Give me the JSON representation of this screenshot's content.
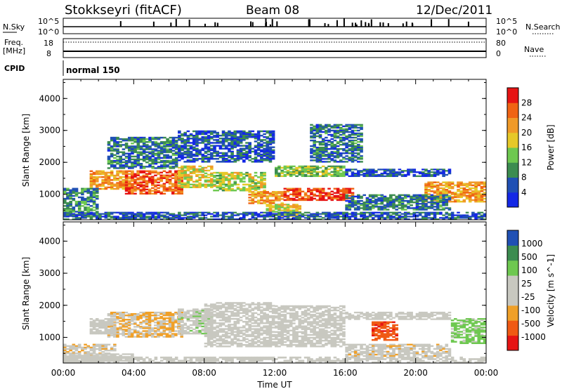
{
  "header": {
    "station": "Stokkseyri (fitACF)",
    "beam": "Beam 08",
    "date": "12/Dec/2011"
  },
  "strip_labels": {
    "nsky": "N.Sky",
    "freq_line1": "Freq.",
    "freq_line2": "[MHz]",
    "cpid": "CPID",
    "nsearch": "N.Search",
    "nave": "Nave",
    "cpid_value": "normal 150"
  },
  "strip_ticks": {
    "nsky_left": [
      "10^5",
      "10^0"
    ],
    "nsky_right": [
      "10^5",
      "10^0"
    ],
    "freq_left": [
      "18",
      "8"
    ],
    "freq_right": [
      "80",
      "0"
    ]
  },
  "colors": {
    "power_scale": [
      "#1428e6",
      "#2050b4",
      "#3c8c50",
      "#6ec850",
      "#e6c828",
      "#f09a28",
      "#f06414",
      "#e61414"
    ],
    "velocity_scale": [
      "#e61414",
      "#f05a14",
      "#f0a028",
      "#c8c8c0",
      "#c8c8c0",
      "#6ec850",
      "#3c8c50",
      "#2050b4"
    ]
  },
  "chart_data": [
    {
      "type": "heatmap",
      "title": "",
      "xlabel": "Time UT",
      "ylabel": "Slant Range [km]",
      "x_ticks": [
        "00:00",
        "04:00",
        "08:00",
        "12:00",
        "16:00",
        "20:00",
        "00:00"
      ],
      "y_ticks": [
        "1000",
        "2000",
        "3000",
        "4000"
      ],
      "ylim": [
        200,
        4600
      ],
      "colorbar_label": "Power [dB]",
      "colorbar_ticks": [
        "28",
        "24",
        "20",
        "16",
        "12",
        "8",
        "4"
      ],
      "colorbar_range": [
        0,
        32
      ],
      "patches": [
        {
          "t0": 1.5,
          "t1": 4.0,
          "r0": 1150,
          "r1": 1750,
          "value": 22
        },
        {
          "t0": 3.5,
          "t1": 6.8,
          "r0": 1000,
          "r1": 1750,
          "value": 26
        },
        {
          "t0": 6.5,
          "t1": 8.5,
          "r0": 1200,
          "r1": 1900,
          "value": 18
        },
        {
          "t0": 8.5,
          "t1": 11.5,
          "r0": 1100,
          "r1": 1700,
          "value": 16
        },
        {
          "t0": 10.5,
          "t1": 12.5,
          "r0": 700,
          "r1": 1100,
          "value": 22
        },
        {
          "t0": 12.5,
          "t1": 16.5,
          "r0": 800,
          "r1": 1200,
          "value": 28
        },
        {
          "t0": 11.5,
          "t1": 13.5,
          "r0": 300,
          "r1": 700,
          "value": 18
        },
        {
          "t0": 12.0,
          "t1": 16.0,
          "r0": 1550,
          "r1": 1900,
          "value": 14
        },
        {
          "t0": 16.0,
          "t1": 22.0,
          "r0": 1550,
          "r1": 1800,
          "value": 6
        },
        {
          "t0": 20.5,
          "t1": 24.0,
          "r0": 750,
          "r1": 1400,
          "value": 22
        },
        {
          "t0": 0.0,
          "t1": 2.0,
          "r0": 300,
          "r1": 1200,
          "value": 10
        },
        {
          "t0": 2.5,
          "t1": 6.5,
          "r0": 1800,
          "r1": 2800,
          "value": 8
        },
        {
          "t0": 6.5,
          "t1": 12.0,
          "r0": 2000,
          "r1": 3000,
          "value": 6
        },
        {
          "t0": 14.0,
          "t1": 17.0,
          "r0": 2000,
          "r1": 3200,
          "value": 8
        },
        {
          "t0": 16.0,
          "t1": 22.0,
          "r0": 500,
          "r1": 1000,
          "value": 8
        },
        {
          "t0": 0.0,
          "t1": 24.0,
          "r0": 200,
          "r1": 450,
          "value": 6
        }
      ]
    },
    {
      "type": "heatmap",
      "title": "",
      "xlabel": "Time UT",
      "ylabel": "Slant Range [km]",
      "x_ticks": [
        "00:00",
        "04:00",
        "08:00",
        "12:00",
        "16:00",
        "20:00",
        "00:00"
      ],
      "y_ticks": [
        "1000",
        "2000",
        "3000",
        "4000"
      ],
      "ylim": [
        200,
        4600
      ],
      "colorbar_label": "Velocity [m s^-1]",
      "colorbar_ticks": [
        "1000",
        "500",
        "100",
        "25",
        "-25",
        "-100",
        "-500",
        "-1000"
      ],
      "colorbar_range": [
        -1200,
        1200
      ],
      "patches": [
        {
          "t0": 2.5,
          "t1": 6.8,
          "r0": 1000,
          "r1": 1800,
          "value": -300
        },
        {
          "t0": 6.5,
          "t1": 8.5,
          "r0": 1100,
          "r1": 1900,
          "value": 200
        },
        {
          "t0": 1.5,
          "t1": 3.0,
          "r0": 1100,
          "r1": 1600,
          "value": 150
        },
        {
          "t0": 8.0,
          "t1": 12.0,
          "r0": 700,
          "r1": 2100,
          "value": 0
        },
        {
          "t0": 12.0,
          "t1": 16.0,
          "r0": 700,
          "r1": 2000,
          "value": 0
        },
        {
          "t0": 16.0,
          "t1": 22.0,
          "r0": 1550,
          "r1": 1800,
          "value": 0
        },
        {
          "t0": 17.5,
          "t1": 19.0,
          "r0": 900,
          "r1": 1500,
          "value": -800
        },
        {
          "t0": 22.0,
          "t1": 24.0,
          "r0": 800,
          "r1": 1600,
          "value": 400
        },
        {
          "t0": 0.0,
          "t1": 3.0,
          "r0": 300,
          "r1": 800,
          "value": -200
        },
        {
          "t0": 0.0,
          "t1": 4.0,
          "r0": 250,
          "r1": 500,
          "value": 120
        },
        {
          "t0": 16.0,
          "t1": 22.0,
          "r0": 400,
          "r1": 800,
          "value": -200
        },
        {
          "t0": 0.0,
          "t1": 24.0,
          "r0": 200,
          "r1": 400,
          "value": 100
        }
      ]
    }
  ]
}
